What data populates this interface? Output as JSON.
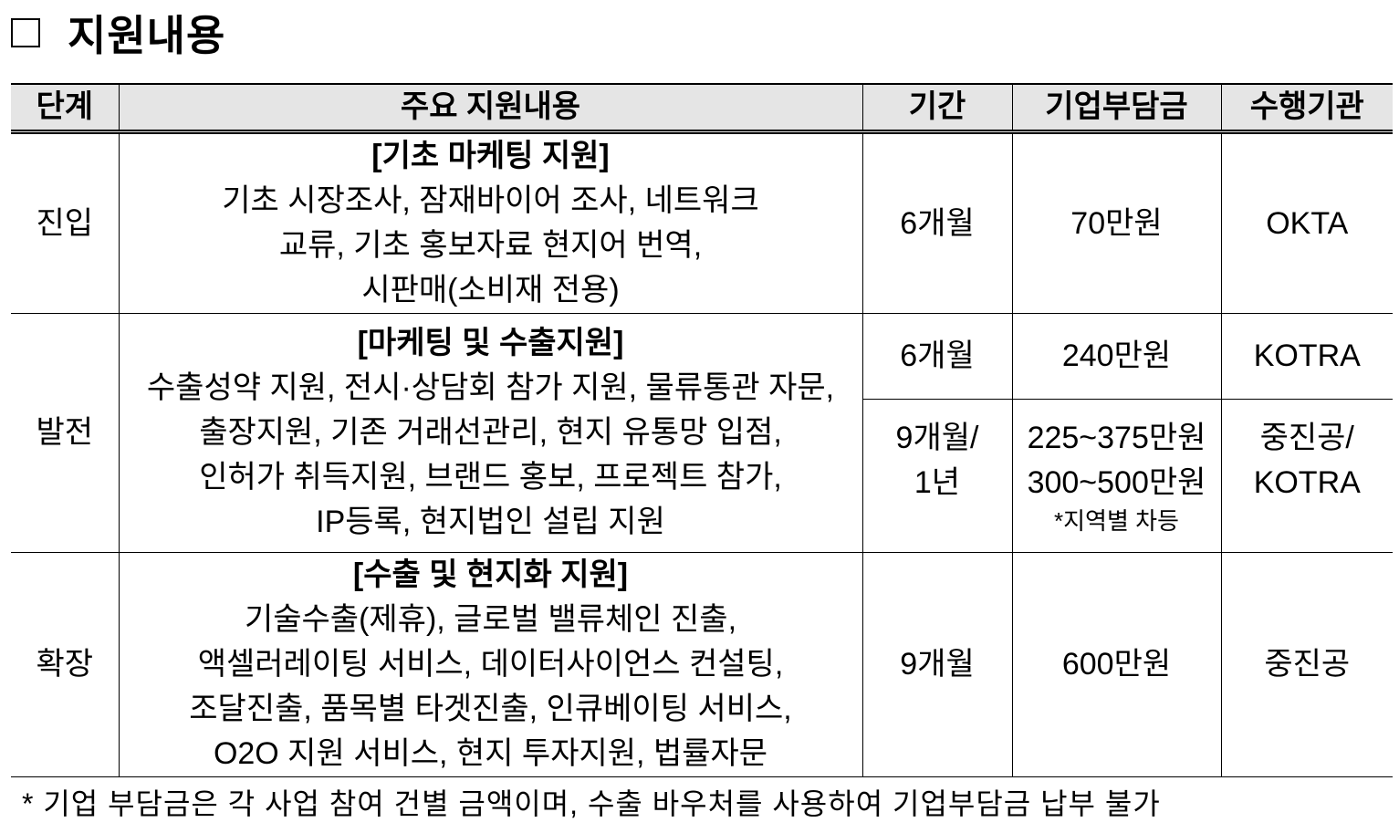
{
  "title": "지원내용",
  "table": {
    "headers": [
      "단계",
      "주요 지원내용",
      "기간",
      "기업부담금",
      "수행기관"
    ],
    "rows": [
      {
        "stage": "진입",
        "heading": "[기초 마케팅 지원]",
        "lines": [
          "기초 시장조사, 잠재바이어 조사, 네트워크",
          "교류, 기초 홍보자료 현지어 번역,",
          "시판매(소비재 전용)"
        ],
        "period": "6개월",
        "cost": "70만원",
        "agency": "OKTA"
      },
      {
        "stage": "발전",
        "heading": "[마케팅 및 수출지원]",
        "lines": [
          "수출성약 지원, 전시·상담회 참가 지원, 물류통관 자문,",
          "출장지원, 기존 거래선관리, 현지 유통망 입점,",
          "인허가 취득지원, 브랜드 홍보, 프로젝트 참가,",
          "IP등록, 현지법인 설립 지원"
        ],
        "sub": [
          {
            "period": [
              "6개월"
            ],
            "cost": [
              "240만원"
            ],
            "agency": [
              "KOTRA"
            ]
          },
          {
            "period": [
              "9개월/",
              "1년"
            ],
            "cost": [
              "225~375만원",
              "300~500만원"
            ],
            "cost_note": "*지역별 차등",
            "agency": [
              "중진공/",
              "KOTRA"
            ]
          }
        ]
      },
      {
        "stage": "확장",
        "heading": "[수출 및 현지화 지원]",
        "lines": [
          "기술수출(제휴), 글로벌 밸류체인 진출,",
          "액셀러레이팅 서비스, 데이터사이언스 컨설팅,",
          "조달진출, 품목별 타겟진출, 인큐베이팅 서비스,",
          "O2O 지원 서비스, 현지 투자지원, 법률자문"
        ],
        "period": "9개월",
        "cost": "600만원",
        "agency": "중진공"
      }
    ]
  },
  "footnote": "* 기업 부담금은 각 사업 참여 건별 금액이며, 수출 바우처를 사용하여 기업부담금 납부 불가"
}
